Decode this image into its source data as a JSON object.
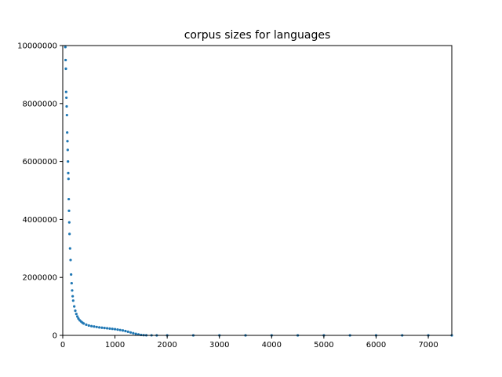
{
  "chart_data": {
    "type": "scatter",
    "title": "corpus sizes for languages",
    "xlabel": "",
    "ylabel": "",
    "xlim": [
      0,
      7450
    ],
    "ylim": [
      0,
      10000000
    ],
    "xticks": [
      0,
      1000,
      2000,
      3000,
      4000,
      5000,
      6000,
      7000
    ],
    "yticks": [
      0,
      2000000,
      4000000,
      6000000,
      8000000,
      10000000
    ],
    "xtick_labels": [
      "0",
      "1000",
      "2000",
      "3000",
      "4000",
      "5000",
      "6000",
      "7000"
    ],
    "ytick_labels": [
      "0",
      "2000000",
      "4000000",
      "6000000",
      "8000000",
      "10000000"
    ],
    "grid": false,
    "marker_color": "#1f77b4",
    "series": [
      {
        "x": [
          50,
          55,
          60,
          65,
          70,
          75,
          80,
          85,
          90,
          95,
          100,
          105,
          110,
          115,
          120,
          125,
          130,
          140,
          150,
          160,
          170,
          180,
          190,
          200,
          220,
          240,
          260,
          280,
          300,
          325,
          350,
          375,
          400,
          450,
          500,
          550,
          600,
          650,
          700,
          750,
          800,
          850,
          900,
          950,
          1000,
          1050,
          1100,
          1150,
          1200,
          1250,
          1300,
          1350,
          1400,
          1450,
          1500,
          1550,
          1600,
          1700,
          1800,
          2000,
          2500,
          3000,
          3500,
          4000,
          4500,
          5000,
          5500,
          6000,
          6500,
          7000,
          7450
        ],
        "y": [
          9950000,
          9500000,
          9200000,
          8400000,
          8200000,
          7900000,
          7600000,
          7000000,
          6700000,
          6400000,
          6000000,
          5600000,
          5400000,
          4700000,
          4300000,
          3900000,
          3500000,
          3000000,
          2600000,
          2100000,
          1800000,
          1550000,
          1350000,
          1200000,
          1000000,
          850000,
          740000,
          650000,
          580000,
          520000,
          480000,
          440000,
          410000,
          370000,
          340000,
          320000,
          305000,
          290000,
          275000,
          265000,
          255000,
          245000,
          235000,
          225000,
          215000,
          200000,
          185000,
          170000,
          150000,
          125000,
          100000,
          75000,
          50000,
          30000,
          15000,
          8000,
          4000,
          2000,
          1000,
          500,
          200,
          100,
          80,
          60,
          40,
          30,
          20,
          15,
          10,
          5,
          2
        ]
      }
    ]
  }
}
